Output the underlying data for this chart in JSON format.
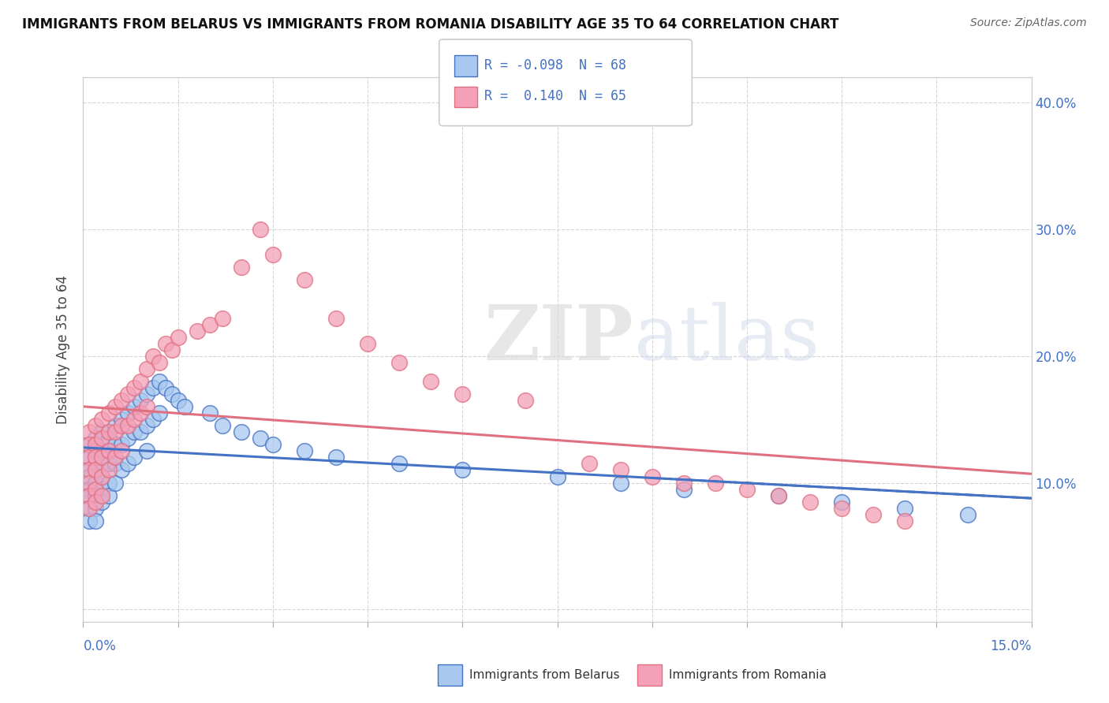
{
  "title": "IMMIGRANTS FROM BELARUS VS IMMIGRANTS FROM ROMANIA DISABILITY AGE 35 TO 64 CORRELATION CHART",
  "source": "Source: ZipAtlas.com",
  "ylabel_label": "Disability Age 35 to 64",
  "legend_belarus": "Immigrants from Belarus",
  "legend_romania": "Immigrants from Romania",
  "r_belarus": "-0.098",
  "n_belarus": "68",
  "r_romania": "0.140",
  "n_romania": "65",
  "color_belarus": "#A8C8F0",
  "color_romania": "#F4A0B8",
  "color_belarus_line": "#4472C4",
  "color_romania_line": "#E07080",
  "xlim": [
    0.0,
    0.15
  ],
  "ylim": [
    -0.01,
    0.42
  ],
  "yticks": [
    0.0,
    0.1,
    0.2,
    0.3,
    0.4
  ],
  "ytick_labels": [
    "",
    "10.0%",
    "20.0%",
    "30.0%",
    "40.0%"
  ],
  "belarus_x": [
    0.001,
    0.001,
    0.001,
    0.001,
    0.001,
    0.001,
    0.001,
    0.001,
    0.002,
    0.002,
    0.002,
    0.002,
    0.002,
    0.002,
    0.002,
    0.003,
    0.003,
    0.003,
    0.003,
    0.003,
    0.003,
    0.004,
    0.004,
    0.004,
    0.004,
    0.004,
    0.005,
    0.005,
    0.005,
    0.005,
    0.006,
    0.006,
    0.006,
    0.007,
    0.007,
    0.007,
    0.008,
    0.008,
    0.008,
    0.009,
    0.009,
    0.01,
    0.01,
    0.01,
    0.011,
    0.011,
    0.012,
    0.012,
    0.013,
    0.014,
    0.015,
    0.016,
    0.02,
    0.022,
    0.025,
    0.028,
    0.03,
    0.035,
    0.04,
    0.05,
    0.06,
    0.075,
    0.085,
    0.095,
    0.11,
    0.12,
    0.13,
    0.14
  ],
  "belarus_y": [
    0.13,
    0.12,
    0.11,
    0.105,
    0.095,
    0.09,
    0.08,
    0.07,
    0.135,
    0.125,
    0.115,
    0.1,
    0.09,
    0.08,
    0.07,
    0.14,
    0.125,
    0.115,
    0.105,
    0.095,
    0.085,
    0.135,
    0.125,
    0.115,
    0.1,
    0.09,
    0.145,
    0.13,
    0.115,
    0.1,
    0.15,
    0.13,
    0.11,
    0.155,
    0.135,
    0.115,
    0.16,
    0.14,
    0.12,
    0.165,
    0.14,
    0.17,
    0.145,
    0.125,
    0.175,
    0.15,
    0.18,
    0.155,
    0.175,
    0.17,
    0.165,
    0.16,
    0.155,
    0.145,
    0.14,
    0.135,
    0.13,
    0.125,
    0.12,
    0.115,
    0.11,
    0.105,
    0.1,
    0.095,
    0.09,
    0.085,
    0.08,
    0.075
  ],
  "romania_x": [
    0.001,
    0.001,
    0.001,
    0.001,
    0.001,
    0.001,
    0.001,
    0.002,
    0.002,
    0.002,
    0.002,
    0.002,
    0.002,
    0.003,
    0.003,
    0.003,
    0.003,
    0.003,
    0.004,
    0.004,
    0.004,
    0.004,
    0.005,
    0.005,
    0.005,
    0.006,
    0.006,
    0.006,
    0.007,
    0.007,
    0.008,
    0.008,
    0.009,
    0.009,
    0.01,
    0.01,
    0.011,
    0.012,
    0.013,
    0.014,
    0.015,
    0.018,
    0.02,
    0.022,
    0.025,
    0.028,
    0.03,
    0.035,
    0.04,
    0.045,
    0.05,
    0.055,
    0.06,
    0.07,
    0.08,
    0.085,
    0.09,
    0.095,
    0.1,
    0.105,
    0.11,
    0.115,
    0.12,
    0.125,
    0.13
  ],
  "romania_y": [
    0.14,
    0.13,
    0.12,
    0.11,
    0.1,
    0.09,
    0.08,
    0.145,
    0.13,
    0.12,
    0.11,
    0.095,
    0.085,
    0.15,
    0.135,
    0.12,
    0.105,
    0.09,
    0.155,
    0.14,
    0.125,
    0.11,
    0.16,
    0.14,
    0.12,
    0.165,
    0.145,
    0.125,
    0.17,
    0.145,
    0.175,
    0.15,
    0.18,
    0.155,
    0.19,
    0.16,
    0.2,
    0.195,
    0.21,
    0.205,
    0.215,
    0.22,
    0.225,
    0.23,
    0.27,
    0.3,
    0.28,
    0.26,
    0.23,
    0.21,
    0.195,
    0.18,
    0.17,
    0.165,
    0.115,
    0.11,
    0.105,
    0.1,
    0.1,
    0.095,
    0.09,
    0.085,
    0.08,
    0.075,
    0.07
  ]
}
